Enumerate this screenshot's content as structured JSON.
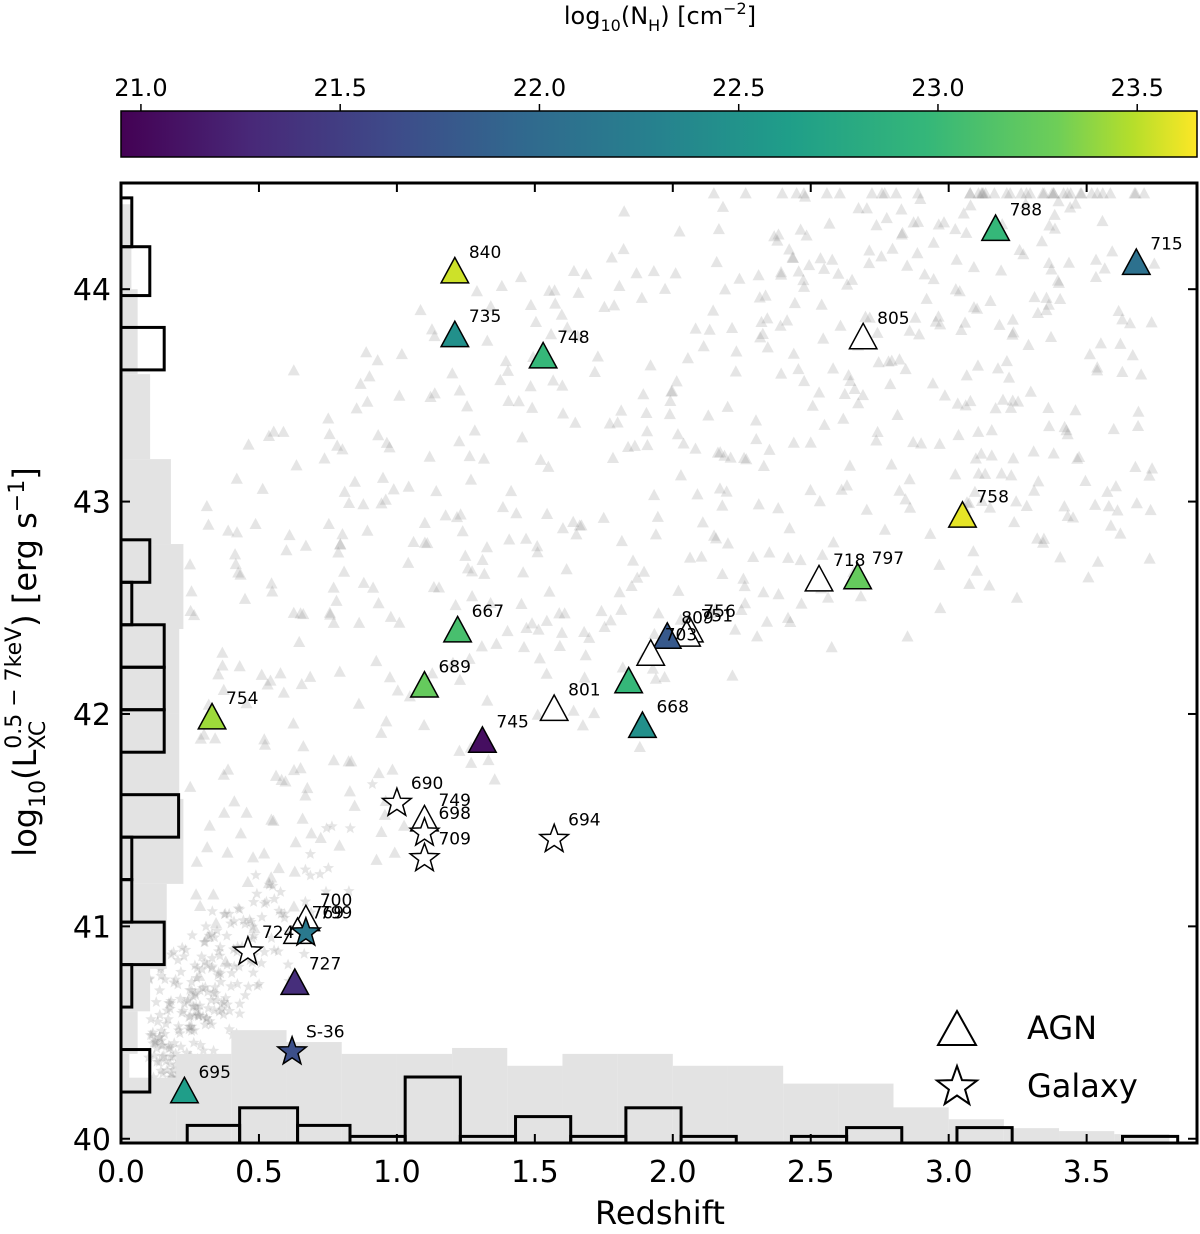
{
  "chart_data": {
    "type": "scatter",
    "xlabel": "Redshift",
    "ylabel": "log10(L_XC^(0.5-7keV)) [erg s^-1]",
    "ylabel_parts": {
      "prefix": "log",
      "sub10": "10",
      "paren_open": "(L",
      "sub": "XC",
      "sup": "0.5 − 7keV",
      "suffix": ") [erg s",
      "sup_unit": "−1",
      "close": "]"
    },
    "xlim": [
      0.0,
      3.9
    ],
    "ylim": [
      39.98,
      44.5
    ],
    "xticks": [
      "0.0",
      "0.5",
      "1.0",
      "1.5",
      "2.0",
      "2.5",
      "3.0",
      "3.5"
    ],
    "xtick_values": [
      0.0,
      0.5,
      1.0,
      1.5,
      2.0,
      2.5,
      3.0,
      3.5
    ],
    "yticks": [
      "40",
      "41",
      "42",
      "43",
      "44"
    ],
    "ytick_values": [
      40,
      41,
      42,
      43,
      44
    ],
    "colorbar": {
      "label_parts": {
        "prefix": "log",
        "sub10": "10",
        "mid": "(N",
        "subH": "H",
        "unit": ") [cm",
        "sup": "−2",
        "close": "]"
      },
      "range": [
        20.95,
        23.65
      ],
      "ticks": [
        "21.0",
        "21.5",
        "22.0",
        "22.5",
        "23.0",
        "23.5"
      ],
      "tick_values": [
        21.0,
        21.5,
        22.0,
        22.5,
        23.0,
        23.5
      ],
      "colormap": "viridis"
    },
    "legend": {
      "placement": "lower-right",
      "entries": [
        {
          "marker": "triangle",
          "label": "AGN"
        },
        {
          "marker": "star",
          "label": "Galaxy"
        }
      ]
    },
    "highlighted_sources": [
      {
        "id": "840",
        "z": 1.21,
        "logL": 44.08,
        "marker": "triangle",
        "logNH": 23.45
      },
      {
        "id": "735",
        "z": 1.21,
        "logL": 43.78,
        "marker": "triangle",
        "logNH": 22.3
      },
      {
        "id": "748",
        "z": 1.53,
        "logL": 43.68,
        "marker": "triangle",
        "logNH": 22.75
      },
      {
        "id": "788",
        "z": 3.17,
        "logL": 44.28,
        "marker": "triangle",
        "logNH": 22.75
      },
      {
        "id": "715",
        "z": 3.68,
        "logL": 44.12,
        "marker": "triangle",
        "logNH": 21.95
      },
      {
        "id": "805",
        "z": 2.69,
        "logL": 43.77,
        "marker": "triangle",
        "logNH": null
      },
      {
        "id": "758",
        "z": 3.05,
        "logL": 42.93,
        "marker": "triangle",
        "logNH": 23.55
      },
      {
        "id": "718",
        "z": 2.53,
        "logL": 42.63,
        "marker": "triangle",
        "logNH": null
      },
      {
        "id": "797",
        "z": 2.67,
        "logL": 42.64,
        "marker": "triangle",
        "logNH": 23.0
      },
      {
        "id": "667",
        "z": 1.22,
        "logL": 42.39,
        "marker": "triangle",
        "logNH": 22.85
      },
      {
        "id": "756",
        "z": 2.06,
        "logL": 42.39,
        "marker": "triangle",
        "logNH": null
      },
      {
        "id": "751",
        "z": 2.05,
        "logL": 42.37,
        "marker": "triangle",
        "logNH": null
      },
      {
        "id": "809",
        "z": 1.98,
        "logL": 42.36,
        "marker": "triangle",
        "logNH": 21.7
      },
      {
        "id": "703",
        "z": 1.92,
        "logL": 42.28,
        "marker": "triangle",
        "logNH": null
      },
      {
        "id": "689",
        "z": 1.1,
        "logL": 42.13,
        "marker": "triangle",
        "logNH": 23.0
      },
      {
        "id": "754",
        "z": 0.33,
        "logL": 41.98,
        "marker": "triangle",
        "logNH": 23.25
      },
      {
        "id": "801",
        "z": 1.57,
        "logL": 42.02,
        "marker": "triangle",
        "logNH": null
      },
      {
        "id": "668",
        "z": 1.89,
        "logL": 41.94,
        "marker": "triangle",
        "logNH": 22.3
      },
      {
        "id": "745",
        "z": 1.31,
        "logL": 41.87,
        "marker": "triangle",
        "logNH": 21.05
      },
      {
        "id": "703b",
        "z": 1.84,
        "logL": 42.15,
        "marker": "triangle",
        "logNH": 22.75
      },
      {
        "id": "690",
        "z": 1.0,
        "logL": 41.58,
        "marker": "star",
        "logNH": null
      },
      {
        "id": "749",
        "z": 1.1,
        "logL": 41.5,
        "marker": "triangle",
        "logNH": null
      },
      {
        "id": "698",
        "z": 1.1,
        "logL": 41.44,
        "marker": "star",
        "logNH": null
      },
      {
        "id": "709",
        "z": 1.1,
        "logL": 41.32,
        "marker": "star",
        "logNH": null
      },
      {
        "id": "694",
        "z": 1.57,
        "logL": 41.41,
        "marker": "star",
        "logNH": null
      },
      {
        "id": "700",
        "z": 0.67,
        "logL": 41.03,
        "marker": "triangle",
        "logNH": null
      },
      {
        "id": "769",
        "z": 0.64,
        "logL": 40.97,
        "marker": "triangle",
        "logNH": null
      },
      {
        "id": "799",
        "z": 0.67,
        "logL": 40.97,
        "marker": "star",
        "logNH": 22.05
      },
      {
        "id": "724",
        "z": 0.46,
        "logL": 40.88,
        "marker": "star",
        "logNH": null
      },
      {
        "id": "727",
        "z": 0.63,
        "logL": 40.73,
        "marker": "triangle",
        "logNH": 21.3
      },
      {
        "id": "S-36",
        "z": 0.62,
        "logL": 40.41,
        "marker": "star",
        "logNH": 21.6
      },
      {
        "id": "695",
        "z": 0.23,
        "logL": 40.22,
        "marker": "triangle",
        "logNH": 22.45
      }
    ],
    "visible_labels": [
      "840",
      "735",
      "748",
      "788",
      "715",
      "805",
      "758",
      "718",
      "797",
      "667",
      "756",
      "751",
      "809",
      "703",
      "689",
      "754",
      "801",
      "668",
      "745",
      "690",
      "749",
      "698",
      "709",
      "694",
      "700",
      "769",
      "799",
      "724",
      "727",
      "S-36",
      "695"
    ],
    "histogram_x_outlined": [
      {
        "bin": [
          0.24,
          0.43
        ],
        "height": 0.08
      },
      {
        "bin": [
          0.43,
          0.64
        ],
        "height": 0.16
      },
      {
        "bin": [
          0.64,
          0.83
        ],
        "height": 0.08
      },
      {
        "bin": [
          0.83,
          1.03
        ],
        "height": 0.03
      },
      {
        "bin": [
          1.03,
          1.23
        ],
        "height": 0.3
      },
      {
        "bin": [
          1.23,
          1.43
        ],
        "height": 0.03
      },
      {
        "bin": [
          1.43,
          1.63
        ],
        "height": 0.12
      },
      {
        "bin": [
          1.63,
          1.83
        ],
        "height": 0.03
      },
      {
        "bin": [
          1.83,
          2.03
        ],
        "height": 0.16
      },
      {
        "bin": [
          2.03,
          2.23
        ],
        "height": 0.03
      },
      {
        "bin": [
          2.43,
          2.63
        ],
        "height": 0.03
      },
      {
        "bin": [
          2.63,
          2.83
        ],
        "height": 0.07
      },
      {
        "bin": [
          2.83,
          3.03
        ],
        "height": 0.0
      },
      {
        "bin": [
          3.03,
          3.23
        ],
        "height": 0.07
      },
      {
        "bin": [
          3.63,
          3.83
        ],
        "height": 0.03
      }
    ],
    "histogram_x_background": [
      {
        "bin": [
          0.0,
          0.2
        ],
        "height": 0.22
      },
      {
        "bin": [
          0.2,
          0.4
        ],
        "height": 0.3
      },
      {
        "bin": [
          0.4,
          0.6
        ],
        "height": 0.38
      },
      {
        "bin": [
          0.6,
          0.8
        ],
        "height": 0.34
      },
      {
        "bin": [
          0.8,
          1.0
        ],
        "height": 0.3
      },
      {
        "bin": [
          1.0,
          1.2
        ],
        "height": 0.3
      },
      {
        "bin": [
          1.2,
          1.4
        ],
        "height": 0.32
      },
      {
        "bin": [
          1.4,
          1.6
        ],
        "height": 0.26
      },
      {
        "bin": [
          1.6,
          1.8
        ],
        "height": 0.3
      },
      {
        "bin": [
          1.8,
          2.0
        ],
        "height": 0.3
      },
      {
        "bin": [
          2.0,
          2.2
        ],
        "height": 0.26
      },
      {
        "bin": [
          2.2,
          2.4
        ],
        "height": 0.26
      },
      {
        "bin": [
          2.4,
          2.6
        ],
        "height": 0.2
      },
      {
        "bin": [
          2.6,
          2.8
        ],
        "height": 0.2
      },
      {
        "bin": [
          2.8,
          3.0
        ],
        "height": 0.12
      },
      {
        "bin": [
          3.0,
          3.2
        ],
        "height": 0.08
      },
      {
        "bin": [
          3.2,
          3.4
        ],
        "height": 0.05
      },
      {
        "bin": [
          3.4,
          3.6
        ],
        "height": 0.04
      },
      {
        "bin": [
          3.6,
          3.8
        ],
        "height": 0.03
      }
    ],
    "histogram_y_outlined": [
      {
        "bin": [
          44.2,
          44.43
        ],
        "height": 0.03
      },
      {
        "bin": [
          43.97,
          44.2
        ],
        "height": 0.08
      },
      {
        "bin": [
          43.62,
          43.82
        ],
        "height": 0.12
      },
      {
        "bin": [
          42.62,
          42.82
        ],
        "height": 0.08
      },
      {
        "bin": [
          42.42,
          42.62
        ],
        "height": 0.03
      },
      {
        "bin": [
          42.22,
          42.42
        ],
        "height": 0.12
      },
      {
        "bin": [
          42.02,
          42.22
        ],
        "height": 0.12
      },
      {
        "bin": [
          41.82,
          42.02
        ],
        "height": 0.12
      },
      {
        "bin": [
          41.42,
          41.62
        ],
        "height": 0.16
      },
      {
        "bin": [
          41.22,
          41.42
        ],
        "height": 0.03
      },
      {
        "bin": [
          41.02,
          41.22
        ],
        "height": 0.03
      },
      {
        "bin": [
          40.82,
          41.02
        ],
        "height": 0.12
      },
      {
        "bin": [
          40.62,
          40.82
        ],
        "height": 0.03
      },
      {
        "bin": [
          40.22,
          40.42
        ],
        "height": 0.08
      }
    ],
    "histogram_y_background": [
      {
        "bin": [
          44.0,
          44.4
        ],
        "height": 0.05
      },
      {
        "bin": [
          43.6,
          44.0
        ],
        "height": 0.08
      },
      {
        "bin": [
          43.2,
          43.6
        ],
        "height": 0.14
      },
      {
        "bin": [
          42.8,
          43.2
        ],
        "height": 0.24
      },
      {
        "bin": [
          42.4,
          42.8
        ],
        "height": 0.3
      },
      {
        "bin": [
          42.0,
          42.4
        ],
        "height": 0.28
      },
      {
        "bin": [
          41.6,
          42.0
        ],
        "height": 0.28
      },
      {
        "bin": [
          41.2,
          41.6
        ],
        "height": 0.3
      },
      {
        "bin": [
          40.8,
          41.2
        ],
        "height": 0.22
      },
      {
        "bin": [
          40.6,
          40.8
        ],
        "height": 0.14
      },
      {
        "bin": [
          40.4,
          40.6
        ],
        "height": 0.08
      },
      {
        "bin": [
          40.0,
          40.4
        ],
        "height": 0.04
      }
    ]
  }
}
